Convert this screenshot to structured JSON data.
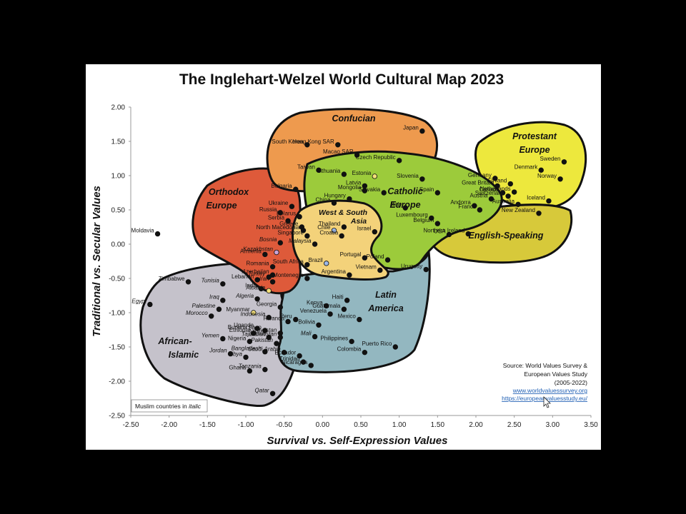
{
  "chart_data": {
    "type": "scatter",
    "title": "The Inglehart-Welzel World Cultural Map 2023",
    "xlabel": "Survival vs. Self-Expression Values",
    "ylabel": "Traditional vs. Secular Values",
    "xlim": [
      -2.5,
      3.5
    ],
    "ylim": [
      -2.5,
      2.0
    ],
    "x_ticks": [
      "-2.50",
      "-2.00",
      "-1.50",
      "-1.00",
      "-0.50",
      "0.00",
      "0.50",
      "1.00",
      "1.50",
      "2.00",
      "2.50",
      "3.00",
      "3.50"
    ],
    "y_ticks": [
      "2.00",
      "1.50",
      "1.00",
      "0.50",
      "0.00",
      "-0.50",
      "-1.00",
      "-1.50",
      "-2.00",
      "-2.50"
    ],
    "grid": false,
    "regions": [
      {
        "name": "Confucian",
        "color": "#EE9A4E"
      },
      {
        "name": "Protestant Europe",
        "color": "#EDE83D"
      },
      {
        "name": "Orthodox Europe",
        "color": "#DE5A3A"
      },
      {
        "name": "Catholic Europe",
        "color": "#9CCB3B"
      },
      {
        "name": "English-Speaking",
        "color": "#D7C93A"
      },
      {
        "name": "West & South Asia",
        "color": "#F3D27A"
      },
      {
        "name": "Latin America",
        "color": "#93B7C0"
      },
      {
        "name": "African-Islamic",
        "color": "#C5C2CB"
      }
    ],
    "points": [
      {
        "name": "Japan",
        "x": 1.3,
        "y": 1.65
      },
      {
        "name": "South Korea",
        "x": -0.2,
        "y": 1.45
      },
      {
        "name": "Hong Kong SAR",
        "x": 0.2,
        "y": 1.45
      },
      {
        "name": "Macao SAR",
        "x": 0.45,
        "y": 1.3
      },
      {
        "name": "Taiwan",
        "x": -0.05,
        "y": 1.08
      },
      {
        "name": "China",
        "x": 0.15,
        "y": 0.6
      },
      {
        "name": "Sweden",
        "x": 3.15,
        "y": 1.2
      },
      {
        "name": "Denmark",
        "x": 2.85,
        "y": 1.08
      },
      {
        "name": "Norway",
        "x": 3.1,
        "y": 0.95
      },
      {
        "name": "Finland",
        "x": 2.45,
        "y": 0.88
      },
      {
        "name": "Netherlands",
        "x": 2.5,
        "y": 0.76
      },
      {
        "name": "Germany",
        "x": 2.25,
        "y": 0.96
      },
      {
        "name": "Great Britain",
        "x": 2.28,
        "y": 0.85
      },
      {
        "name": "Switzerland",
        "x": 2.42,
        "y": 0.7
      },
      {
        "name": "Iceland",
        "x": 2.95,
        "y": 0.63
      },
      {
        "name": "Czech Republic",
        "x": 1.0,
        "y": 1.22
      },
      {
        "name": "Estonia",
        "x": 0.68,
        "y": 0.99
      },
      {
        "name": "Slovenia",
        "x": 1.3,
        "y": 0.95
      },
      {
        "name": "Lithuania",
        "x": 0.28,
        "y": 1.02
      },
      {
        "name": "Latvia",
        "x": 0.55,
        "y": 0.85
      },
      {
        "name": "Slovakia",
        "x": 0.8,
        "y": 0.75
      },
      {
        "name": "Mongolia",
        "x": 0.55,
        "y": 0.78
      },
      {
        "name": "Hungary",
        "x": 0.35,
        "y": 0.66
      },
      {
        "name": "Spain",
        "x": 1.5,
        "y": 0.75
      },
      {
        "name": "Austria",
        "x": 2.2,
        "y": 0.66
      },
      {
        "name": "Andorra",
        "x": 1.98,
        "y": 0.56
      },
      {
        "name": "France",
        "x": 2.05,
        "y": 0.5
      },
      {
        "name": "Italy",
        "x": 1.08,
        "y": 0.53
      },
      {
        "name": "Luxembourg",
        "x": 1.42,
        "y": 0.38
      },
      {
        "name": "Belgium",
        "x": 1.5,
        "y": 0.3
      },
      {
        "name": "Canada",
        "x": 2.35,
        "y": 0.75
      },
      {
        "name": "Australia",
        "x": 2.55,
        "y": 0.58
      },
      {
        "name": "New Zealand",
        "x": 2.82,
        "y": 0.45
      },
      {
        "name": "USA",
        "x": 1.65,
        "y": 0.14
      },
      {
        "name": "Northern Ireland",
        "x": 1.9,
        "y": 0.15
      },
      {
        "name": "Bulgaria",
        "x": -0.35,
        "y": 0.8
      },
      {
        "name": "Ukraine",
        "x": -0.4,
        "y": 0.55
      },
      {
        "name": "Russia",
        "x": -0.55,
        "y": 0.46
      },
      {
        "name": "Belarus",
        "x": -0.3,
        "y": 0.4
      },
      {
        "name": "Serbia",
        "x": -0.45,
        "y": 0.34
      },
      {
        "name": "Greece",
        "x": -0.27,
        "y": 0.25
      },
      {
        "name": "North Macedonia",
        "x": -0.25,
        "y": 0.2
      },
      {
        "name": "Moldavia",
        "x": -2.15,
        "y": 0.15
      },
      {
        "name": "Armenia",
        "x": -0.75,
        "y": -0.15
      },
      {
        "name": "Bosnia",
        "x": -0.55,
        "y": 0.02,
        "muslim": true
      },
      {
        "name": "Kazakhstan",
        "x": -0.6,
        "y": -0.12,
        "muslim": true
      },
      {
        "name": "Romania",
        "x": -0.65,
        "y": -0.33
      },
      {
        "name": "Montenegro",
        "x": -0.2,
        "y": -0.5
      },
      {
        "name": "Thailand",
        "x": 0.28,
        "y": 0.25
      },
      {
        "name": "Chile",
        "x": 0.15,
        "y": 0.2
      },
      {
        "name": "Singapore",
        "x": -0.2,
        "y": 0.12
      },
      {
        "name": "Malaysia",
        "x": -0.1,
        "y": 0.0,
        "muslim": true
      },
      {
        "name": "Croatia",
        "x": 0.25,
        "y": 0.12
      },
      {
        "name": "Israel",
        "x": 0.68,
        "y": 0.18
      },
      {
        "name": "South Africa",
        "x": -0.2,
        "y": -0.3
      },
      {
        "name": "Brazil",
        "x": 0.05,
        "y": -0.28
      },
      {
        "name": "Portugal",
        "x": 0.55,
        "y": -0.2
      },
      {
        "name": "Poland",
        "x": 0.85,
        "y": -0.23
      },
      {
        "name": "Vietnam",
        "x": 0.75,
        "y": -0.38
      },
      {
        "name": "Argentina",
        "x": 0.35,
        "y": -0.45
      },
      {
        "name": "Uruguay",
        "x": 1.35,
        "y": -0.37
      },
      {
        "name": "Haiti",
        "x": 0.32,
        "y": -0.82
      },
      {
        "name": "Guatemala",
        "x": 0.28,
        "y": -0.95
      },
      {
        "name": "Kenya",
        "x": 0.05,
        "y": -0.9
      },
      {
        "name": "Venezuela",
        "x": 0.1,
        "y": -1.02
      },
      {
        "name": "Peru",
        "x": -0.35,
        "y": -1.1
      },
      {
        "name": "Mexico",
        "x": 0.48,
        "y": -1.1
      },
      {
        "name": "Bolivia",
        "x": -0.05,
        "y": -1.18
      },
      {
        "name": "Philippines",
        "x": 0.38,
        "y": -1.42
      },
      {
        "name": "Puerto Rico",
        "x": 0.95,
        "y": -1.5
      },
      {
        "name": "Colombia",
        "x": 0.55,
        "y": -1.58
      },
      {
        "name": "Ecuador",
        "x": -0.3,
        "y": -1.63
      },
      {
        "name": "Trinidad",
        "x": -0.25,
        "y": -1.72
      },
      {
        "name": "Nicaragua",
        "x": -0.15,
        "y": -1.77
      },
      {
        "name": "Azerbaijan",
        "x": -0.65,
        "y": -0.45,
        "muslim": true
      },
      {
        "name": "Lebanon",
        "x": -0.85,
        "y": -0.52
      },
      {
        "name": "Iran",
        "x": -0.65,
        "y": -0.55,
        "muslim": true
      },
      {
        "name": "Turkey",
        "x": -0.7,
        "y": -0.48,
        "muslim": true
      },
      {
        "name": "Tunisia",
        "x": -1.3,
        "y": -0.58,
        "muslim": true
      },
      {
        "name": "Zimbabwe",
        "x": -1.75,
        "y": -0.55
      },
      {
        "name": "India",
        "x": -0.8,
        "y": -0.65
      },
      {
        "name": "Albania",
        "x": -0.7,
        "y": -0.68,
        "muslim": true
      },
      {
        "name": "Algeria",
        "x": -0.85,
        "y": -0.8,
        "muslim": true
      },
      {
        "name": "Iraq",
        "x": -1.3,
        "y": -0.82,
        "muslim": true
      },
      {
        "name": "Palestine",
        "x": -1.35,
        "y": -0.95,
        "muslim": true
      },
      {
        "name": "Egypt",
        "x": -2.25,
        "y": -0.88,
        "muslim": true
      },
      {
        "name": "Morocco",
        "x": -1.45,
        "y": -1.05,
        "muslim": true
      },
      {
        "name": "Georgia",
        "x": -0.55,
        "y": -0.92
      },
      {
        "name": "Myanmar",
        "x": -0.9,
        "y": -1.0
      },
      {
        "name": "Indonesia",
        "x": -0.7,
        "y": -1.07,
        "muslim": true
      },
      {
        "name": "Rwanda",
        "x": -0.45,
        "y": -1.13
      },
      {
        "name": "Uganda",
        "x": -0.85,
        "y": -1.23
      },
      {
        "name": "Ethiopia",
        "x": -0.9,
        "y": -1.3
      },
      {
        "name": "Burkina Faso",
        "x": -0.75,
        "y": -1.26
      },
      {
        "name": "Kyrgyzstan",
        "x": -0.55,
        "y": -1.3,
        "muslim": true
      },
      {
        "name": "Tajikistan",
        "x": -0.7,
        "y": -1.36,
        "muslim": true
      },
      {
        "name": "Lebekistan",
        "x": -0.55,
        "y": -1.36,
        "muslim": true
      },
      {
        "name": "Yemen",
        "x": -1.3,
        "y": -1.38,
        "muslim": true
      },
      {
        "name": "Nigeria",
        "x": -0.95,
        "y": -1.42
      },
      {
        "name": "Pakistan",
        "x": -0.6,
        "y": -1.45,
        "muslim": true
      },
      {
        "name": "Mali",
        "x": -0.1,
        "y": -1.35,
        "muslim": true
      },
      {
        "name": "Bangladesh",
        "x": -0.75,
        "y": -1.57,
        "muslim": true
      },
      {
        "name": "Saudi Arabia",
        "x": -0.5,
        "y": -1.58,
        "muslim": true
      },
      {
        "name": "Jordan",
        "x": -1.2,
        "y": -1.6,
        "muslim": true
      },
      {
        "name": "Libya",
        "x": -1.0,
        "y": -1.65,
        "muslim": true
      },
      {
        "name": "Ghana",
        "x": -0.95,
        "y": -1.85
      },
      {
        "name": "Tanzania",
        "x": -0.75,
        "y": -1.83,
        "muslim": true
      },
      {
        "name": "Qatar",
        "x": -0.65,
        "y": -2.18,
        "muslim": true
      }
    ]
  },
  "source": {
    "lines": [
      "Source: World Values Survey &",
      "European Values Study",
      "(2005-2022)"
    ],
    "links": [
      "www.worldvaluessurvey.org",
      "https://europeanvaluesstudy.eu/"
    ]
  },
  "note": {
    "prefix": "Muslim countries in ",
    "italic": "italic"
  }
}
